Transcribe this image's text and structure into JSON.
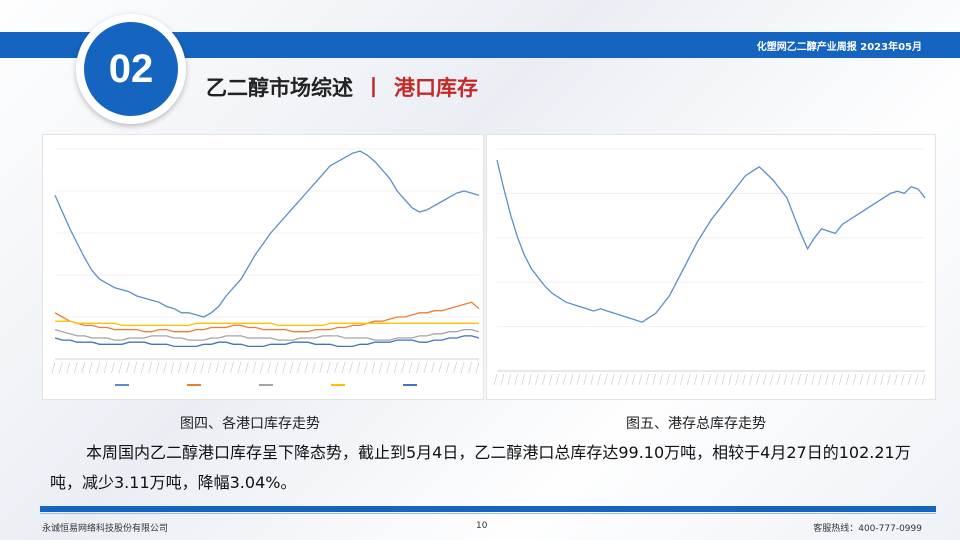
{
  "header": {
    "report_title": "化塑网乙二醇产业周报   2023年05月",
    "section_number": "02",
    "title_main": "乙二醇市场综述",
    "title_sep": "丨",
    "title_sub": "港口库存"
  },
  "figures": {
    "left_caption": "图四、各港口库存走势",
    "right_caption": "图五、港存总库存走势"
  },
  "body": {
    "paragraph": "本周国内乙二醇港口库存呈下降态势，截止到5月4日，乙二醇港口总库存达99.10万吨，相较于4月27日的102.21万吨，减少3.11万吨，降幅3.04%。"
  },
  "footer": {
    "company": "永诚恒易网络科技股份有限公司",
    "page": "10",
    "hotline": "客服热线：400-777-0999"
  },
  "colors": {
    "brand_blue": "#1565c0",
    "accent_red": "#c62828"
  },
  "chart_data": [
    {
      "type": "line",
      "title": "",
      "series": [
        {
          "color": "#5b8fc9",
          "values": [
            78,
            70,
            62,
            55,
            48,
            42,
            38,
            36,
            34,
            33,
            32,
            30,
            29,
            28,
            27,
            25,
            24,
            22,
            22,
            21,
            20,
            22,
            25,
            30,
            34,
            38,
            44,
            50,
            55,
            60,
            64,
            68,
            72,
            76,
            80,
            84,
            88,
            92,
            94,
            96,
            98,
            99,
            97,
            94,
            90,
            86,
            80,
            76,
            72,
            70,
            71,
            73,
            75,
            77,
            79,
            80,
            79,
            78
          ]
        },
        {
          "color": "#ed7d31",
          "values": [
            22,
            20,
            18,
            17,
            16,
            16,
            15,
            15,
            14,
            14,
            14,
            14,
            13,
            13,
            14,
            14,
            13,
            13,
            13,
            14,
            14,
            15,
            15,
            15,
            16,
            16,
            15,
            15,
            14,
            14,
            14,
            14,
            13,
            13,
            13,
            14,
            14,
            14,
            15,
            15,
            16,
            16,
            17,
            18,
            18,
            19,
            20,
            20,
            21,
            22,
            22,
            23,
            23,
            24,
            25,
            26,
            27,
            24
          ]
        },
        {
          "color": "#a5a5a5",
          "values": [
            14,
            13,
            12,
            11,
            11,
            10,
            10,
            10,
            9,
            9,
            10,
            10,
            10,
            11,
            11,
            11,
            10,
            10,
            9,
            9,
            9,
            10,
            10,
            11,
            11,
            11,
            10,
            10,
            10,
            10,
            9,
            9,
            9,
            10,
            10,
            10,
            11,
            11,
            11,
            10,
            10,
            10,
            10,
            9,
            9,
            9,
            10,
            10,
            10,
            11,
            11,
            12,
            12,
            13,
            13,
            14,
            14,
            13
          ]
        },
        {
          "color": "#ffc000",
          "values": [
            18,
            18,
            18,
            17,
            17,
            17,
            17,
            17,
            17,
            16,
            16,
            16,
            16,
            16,
            16,
            16,
            16,
            16,
            16,
            17,
            17,
            17,
            17,
            17,
            17,
            17,
            17,
            17,
            17,
            17,
            16,
            16,
            16,
            16,
            16,
            16,
            16,
            17,
            17,
            17,
            17,
            17,
            17,
            17,
            17,
            17,
            17,
            17,
            17,
            17,
            17,
            17,
            17,
            17,
            17,
            17,
            17,
            17
          ]
        },
        {
          "color": "#4472c4",
          "values": [
            10,
            9,
            9,
            8,
            8,
            8,
            7,
            7,
            7,
            7,
            8,
            8,
            8,
            7,
            7,
            7,
            6,
            6,
            6,
            6,
            7,
            7,
            8,
            8,
            7,
            7,
            6,
            6,
            6,
            7,
            7,
            7,
            8,
            8,
            8,
            7,
            7,
            7,
            6,
            6,
            6,
            7,
            7,
            8,
            8,
            8,
            9,
            9,
            9,
            8,
            8,
            9,
            9,
            10,
            10,
            11,
            11,
            10
          ]
        }
      ]
    },
    {
      "type": "line",
      "title": "",
      "series": [
        {
          "color": "#5b8fc9",
          "values": [
            95,
            82,
            70,
            60,
            52,
            46,
            42,
            38,
            35,
            33,
            31,
            30,
            29,
            28,
            27,
            28,
            27,
            26,
            25,
            24,
            23,
            22,
            24,
            26,
            30,
            34,
            40,
            46,
            52,
            58,
            63,
            68,
            72,
            76,
            80,
            84,
            88,
            90,
            92,
            89,
            86,
            82,
            78,
            70,
            62,
            55,
            60,
            64,
            63,
            62,
            66,
            68,
            70,
            72,
            74,
            76,
            78,
            80,
            81,
            80,
            83,
            82,
            78
          ]
        }
      ]
    }
  ]
}
